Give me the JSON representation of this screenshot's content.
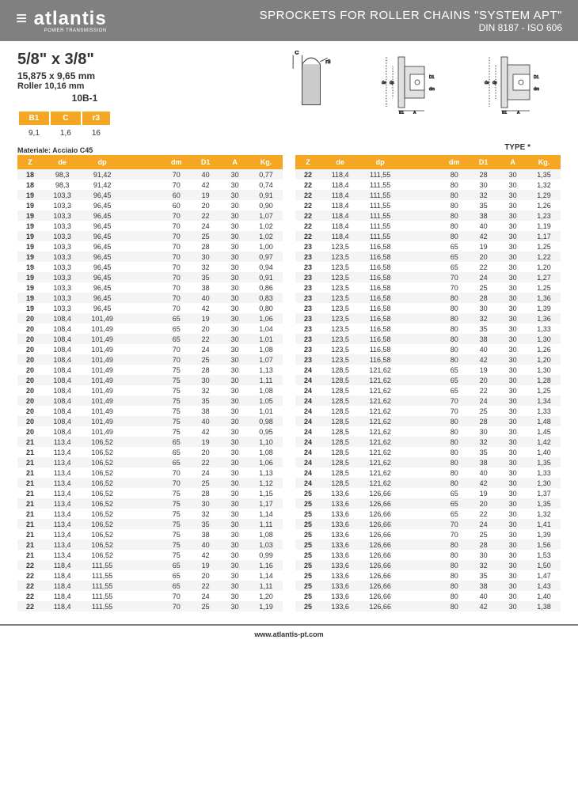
{
  "header": {
    "logo": "atlantis",
    "logo_sub": "POWER TRANSMISSION",
    "title": "SPROCKETS FOR ROLLER CHAINS \"SYSTEM APT\"",
    "subtitle": "DIN 8187 - ISO 606"
  },
  "spec": {
    "size": "5/8\" x 3/8\"",
    "mm": "15,875 x 9,65 mm",
    "roller": "Roller 10,16 mm",
    "code": "10B-1"
  },
  "small_table": {
    "headers": [
      "B1",
      "C",
      "r3"
    ],
    "values": [
      "9,1",
      "1,6",
      "16"
    ]
  },
  "material": "Materiale: Acciaio C45",
  "type_label": "TYPE *",
  "columns": [
    "Z",
    "de",
    "dp",
    "",
    "dm",
    "D1",
    "A",
    "Kg."
  ],
  "table_left": [
    [
      "18",
      "98,3",
      "91,42",
      "",
      "70",
      "40",
      "30",
      "0,77"
    ],
    [
      "18",
      "98,3",
      "91,42",
      "",
      "70",
      "42",
      "30",
      "0,74"
    ],
    [
      "19",
      "103,3",
      "96,45",
      "",
      "60",
      "19",
      "30",
      "0,91"
    ],
    [
      "19",
      "103,3",
      "96,45",
      "",
      "60",
      "20",
      "30",
      "0,90"
    ],
    [
      "19",
      "103,3",
      "96,45",
      "",
      "70",
      "22",
      "30",
      "1,07"
    ],
    [
      "19",
      "103,3",
      "96,45",
      "",
      "70",
      "24",
      "30",
      "1,02"
    ],
    [
      "19",
      "103,3",
      "96,45",
      "",
      "70",
      "25",
      "30",
      "1,02"
    ],
    [
      "19",
      "103,3",
      "96,45",
      "",
      "70",
      "28",
      "30",
      "1,00"
    ],
    [
      "19",
      "103,3",
      "96,45",
      "",
      "70",
      "30",
      "30",
      "0,97"
    ],
    [
      "19",
      "103,3",
      "96,45",
      "",
      "70",
      "32",
      "30",
      "0,94"
    ],
    [
      "19",
      "103,3",
      "96,45",
      "",
      "70",
      "35",
      "30",
      "0,91"
    ],
    [
      "19",
      "103,3",
      "96,45",
      "",
      "70",
      "38",
      "30",
      "0,86"
    ],
    [
      "19",
      "103,3",
      "96,45",
      "",
      "70",
      "40",
      "30",
      "0,83"
    ],
    [
      "19",
      "103,3",
      "96,45",
      "",
      "70",
      "42",
      "30",
      "0,80"
    ],
    [
      "20",
      "108,4",
      "101,49",
      "",
      "65",
      "19",
      "30",
      "1,06"
    ],
    [
      "20",
      "108,4",
      "101,49",
      "",
      "65",
      "20",
      "30",
      "1,04"
    ],
    [
      "20",
      "108,4",
      "101,49",
      "",
      "65",
      "22",
      "30",
      "1,01"
    ],
    [
      "20",
      "108,4",
      "101,49",
      "",
      "70",
      "24",
      "30",
      "1,08"
    ],
    [
      "20",
      "108,4",
      "101,49",
      "",
      "70",
      "25",
      "30",
      "1,07"
    ],
    [
      "20",
      "108,4",
      "101,49",
      "",
      "75",
      "28",
      "30",
      "1,13"
    ],
    [
      "20",
      "108,4",
      "101,49",
      "",
      "75",
      "30",
      "30",
      "1,11"
    ],
    [
      "20",
      "108,4",
      "101,49",
      "",
      "75",
      "32",
      "30",
      "1,08"
    ],
    [
      "20",
      "108,4",
      "101,49",
      "",
      "75",
      "35",
      "30",
      "1,05"
    ],
    [
      "20",
      "108,4",
      "101,49",
      "",
      "75",
      "38",
      "30",
      "1,01"
    ],
    [
      "20",
      "108,4",
      "101,49",
      "",
      "75",
      "40",
      "30",
      "0,98"
    ],
    [
      "20",
      "108,4",
      "101,49",
      "",
      "75",
      "42",
      "30",
      "0,95"
    ],
    [
      "21",
      "113,4",
      "106,52",
      "",
      "65",
      "19",
      "30",
      "1,10"
    ],
    [
      "21",
      "113,4",
      "106,52",
      "",
      "65",
      "20",
      "30",
      "1,08"
    ],
    [
      "21",
      "113,4",
      "106,52",
      "",
      "65",
      "22",
      "30",
      "1,06"
    ],
    [
      "21",
      "113,4",
      "106,52",
      "",
      "70",
      "24",
      "30",
      "1,13"
    ],
    [
      "21",
      "113,4",
      "106,52",
      "",
      "70",
      "25",
      "30",
      "1,12"
    ],
    [
      "21",
      "113,4",
      "106,52",
      "",
      "75",
      "28",
      "30",
      "1,15"
    ],
    [
      "21",
      "113,4",
      "106,52",
      "",
      "75",
      "30",
      "30",
      "1,17"
    ],
    [
      "21",
      "113,4",
      "106,52",
      "",
      "75",
      "32",
      "30",
      "1,14"
    ],
    [
      "21",
      "113,4",
      "106,52",
      "",
      "75",
      "35",
      "30",
      "1,11"
    ],
    [
      "21",
      "113,4",
      "106,52",
      "",
      "75",
      "38",
      "30",
      "1,08"
    ],
    [
      "21",
      "113,4",
      "106,52",
      "",
      "75",
      "40",
      "30",
      "1,03"
    ],
    [
      "21",
      "113,4",
      "106,52",
      "",
      "75",
      "42",
      "30",
      "0,99"
    ],
    [
      "22",
      "118,4",
      "111,55",
      "",
      "65",
      "19",
      "30",
      "1,16"
    ],
    [
      "22",
      "118,4",
      "111,55",
      "",
      "65",
      "20",
      "30",
      "1,14"
    ],
    [
      "22",
      "118,4",
      "111,55",
      "",
      "65",
      "22",
      "30",
      "1,11"
    ],
    [
      "22",
      "118,4",
      "111,55",
      "",
      "70",
      "24",
      "30",
      "1,20"
    ],
    [
      "22",
      "118,4",
      "111,55",
      "",
      "70",
      "25",
      "30",
      "1,19"
    ]
  ],
  "table_right": [
    [
      "22",
      "118,4",
      "111,55",
      "",
      "80",
      "28",
      "30",
      "1,35"
    ],
    [
      "22",
      "118,4",
      "111,55",
      "",
      "80",
      "30",
      "30",
      "1,32"
    ],
    [
      "22",
      "118,4",
      "111,55",
      "",
      "80",
      "32",
      "30",
      "1,29"
    ],
    [
      "22",
      "118,4",
      "111,55",
      "",
      "80",
      "35",
      "30",
      "1,26"
    ],
    [
      "22",
      "118,4",
      "111,55",
      "",
      "80",
      "38",
      "30",
      "1,23"
    ],
    [
      "22",
      "118,4",
      "111,55",
      "",
      "80",
      "40",
      "30",
      "1,19"
    ],
    [
      "22",
      "118,4",
      "111,55",
      "",
      "80",
      "42",
      "30",
      "1,17"
    ],
    [
      "23",
      "123,5",
      "116,58",
      "",
      "65",
      "19",
      "30",
      "1,25"
    ],
    [
      "23",
      "123,5",
      "116,58",
      "",
      "65",
      "20",
      "30",
      "1,22"
    ],
    [
      "23",
      "123,5",
      "116,58",
      "",
      "65",
      "22",
      "30",
      "1,20"
    ],
    [
      "23",
      "123,5",
      "116,58",
      "",
      "70",
      "24",
      "30",
      "1,27"
    ],
    [
      "23",
      "123,5",
      "116,58",
      "",
      "70",
      "25",
      "30",
      "1,25"
    ],
    [
      "23",
      "123,5",
      "116,58",
      "",
      "80",
      "28",
      "30",
      "1,36"
    ],
    [
      "23",
      "123,5",
      "116,58",
      "",
      "80",
      "30",
      "30",
      "1,39"
    ],
    [
      "23",
      "123,5",
      "116,58",
      "",
      "80",
      "32",
      "30",
      "1,36"
    ],
    [
      "23",
      "123,5",
      "116,58",
      "",
      "80",
      "35",
      "30",
      "1,33"
    ],
    [
      "23",
      "123,5",
      "116,58",
      "",
      "80",
      "38",
      "30",
      "1,30"
    ],
    [
      "23",
      "123,5",
      "116,58",
      "",
      "80",
      "40",
      "30",
      "1,26"
    ],
    [
      "23",
      "123,5",
      "116,58",
      "",
      "80",
      "42",
      "30",
      "1,20"
    ],
    [
      "24",
      "128,5",
      "121,62",
      "",
      "65",
      "19",
      "30",
      "1,30"
    ],
    [
      "24",
      "128,5",
      "121,62",
      "",
      "65",
      "20",
      "30",
      "1,28"
    ],
    [
      "24",
      "128,5",
      "121,62",
      "",
      "65",
      "22",
      "30",
      "1,25"
    ],
    [
      "24",
      "128,5",
      "121,62",
      "",
      "70",
      "24",
      "30",
      "1,34"
    ],
    [
      "24",
      "128,5",
      "121,62",
      "",
      "70",
      "25",
      "30",
      "1,33"
    ],
    [
      "24",
      "128,5",
      "121,62",
      "",
      "80",
      "28",
      "30",
      "1,48"
    ],
    [
      "24",
      "128,5",
      "121,62",
      "",
      "80",
      "30",
      "30",
      "1,45"
    ],
    [
      "24",
      "128,5",
      "121,62",
      "",
      "80",
      "32",
      "30",
      "1,42"
    ],
    [
      "24",
      "128,5",
      "121,62",
      "",
      "80",
      "35",
      "30",
      "1,40"
    ],
    [
      "24",
      "128,5",
      "121,62",
      "",
      "80",
      "38",
      "30",
      "1,35"
    ],
    [
      "24",
      "128,5",
      "121,62",
      "",
      "80",
      "40",
      "30",
      "1,33"
    ],
    [
      "24",
      "128,5",
      "121,62",
      "",
      "80",
      "42",
      "30",
      "1,30"
    ],
    [
      "25",
      "133,6",
      "126,66",
      "",
      "65",
      "19",
      "30",
      "1,37"
    ],
    [
      "25",
      "133,6",
      "126,66",
      "",
      "65",
      "20",
      "30",
      "1,35"
    ],
    [
      "25",
      "133,6",
      "126,66",
      "",
      "65",
      "22",
      "30",
      "1,32"
    ],
    [
      "25",
      "133,6",
      "126,66",
      "",
      "70",
      "24",
      "30",
      "1,41"
    ],
    [
      "25",
      "133,6",
      "126,66",
      "",
      "70",
      "25",
      "30",
      "1,39"
    ],
    [
      "25",
      "133,6",
      "126,66",
      "",
      "80",
      "28",
      "30",
      "1,56"
    ],
    [
      "25",
      "133,6",
      "126,66",
      "",
      "80",
      "30",
      "30",
      "1,53"
    ],
    [
      "25",
      "133,6",
      "126,66",
      "",
      "80",
      "32",
      "30",
      "1,50"
    ],
    [
      "25",
      "133,6",
      "126,66",
      "",
      "80",
      "35",
      "30",
      "1,47"
    ],
    [
      "25",
      "133,6",
      "126,66",
      "",
      "80",
      "38",
      "30",
      "1,43"
    ],
    [
      "25",
      "133,6",
      "126,66",
      "",
      "80",
      "40",
      "30",
      "1,40"
    ],
    [
      "25",
      "133,6",
      "126,66",
      "",
      "80",
      "42",
      "30",
      "1,38"
    ]
  ],
  "footer": "www.atlantis-pt.com",
  "colors": {
    "header_bg": "#808080",
    "accent": "#f5a623",
    "row_alt": "#f4f4f4"
  }
}
